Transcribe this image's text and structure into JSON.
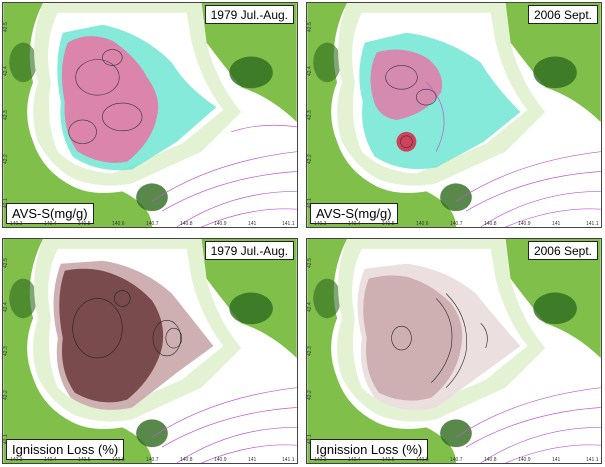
{
  "figure": {
    "panels": [
      {
        "id": "p1",
        "period_label": "1979 Jul.-Aug.",
        "variable_label": "AVS-S(mg/g)",
        "x_ticks": [
          "140.3",
          "140.4",
          "140.5",
          "140.6",
          "140.7",
          "140.8",
          "140.9",
          "141",
          "141.1"
        ],
        "y_ticks": [
          "42.5",
          "42.4",
          "42.3",
          "42.2",
          "42.1"
        ]
      },
      {
        "id": "p2",
        "period_label": "2006 Sept.",
        "variable_label": "AVS-S(mg/g)",
        "x_ticks": [
          "140.3",
          "140.4",
          "140.5",
          "140.6",
          "140.7",
          "140.8",
          "140.9",
          "141",
          "141.1"
        ],
        "y_ticks": [
          "42.5",
          "42.4",
          "42.3",
          "42.2",
          "42.1"
        ]
      },
      {
        "id": "p3",
        "period_label": "1979 Jul.-Aug.",
        "variable_label": "Ignission Loss (%)",
        "x_ticks": [
          "140.3",
          "140.4",
          "140.5",
          "140.6",
          "140.7",
          "140.8",
          "140.9",
          "141",
          "141.1"
        ],
        "y_ticks": [
          "42.5",
          "42.4",
          "42.3",
          "42.2",
          "42.1"
        ]
      },
      {
        "id": "p4",
        "period_label": "2006 Sept.",
        "variable_label": "Ignission Loss (%)",
        "x_ticks": [
          "140.3",
          "140.4",
          "140.5",
          "140.6",
          "140.7",
          "140.8",
          "140.9",
          "141",
          "141.1"
        ],
        "y_ticks": [
          "42.5",
          "42.4",
          "42.3",
          "42.2",
          "42.1"
        ]
      }
    ]
  },
  "colors": {
    "land_green": "#7fbf4a",
    "land_dark": "#2e6b1e",
    "shore": "#e4f2d4",
    "bathy_line": "#c058d8",
    "avs_pink": "#f06aa0",
    "avs_cyan": "#70e6d2",
    "il_brown_dark": "#6b3a3a",
    "il_brown_light": "#c9a7aa"
  }
}
